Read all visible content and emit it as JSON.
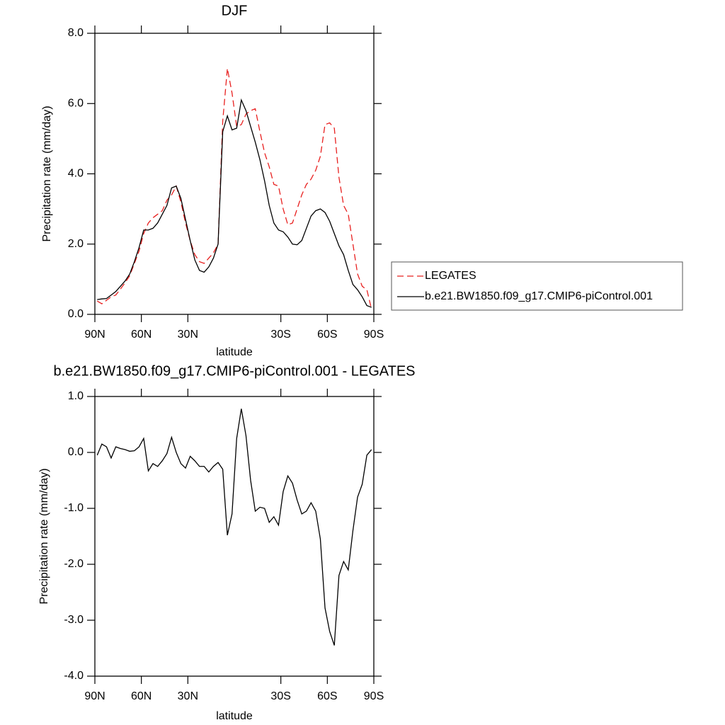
{
  "chart_data": [
    {
      "type": "line",
      "title": "DJF",
      "x_label": "latitude",
      "y_label": "Precipitation rate (mm/day)",
      "x": [
        88.5,
        85.5,
        82.5,
        79.5,
        76.5,
        73.5,
        70.5,
        67.5,
        64.5,
        61.5,
        58.5,
        55.5,
        52.5,
        49.5,
        46.5,
        43.5,
        40.5,
        37.5,
        34.5,
        31.5,
        28.5,
        25.5,
        22.5,
        19.5,
        16.5,
        13.5,
        10.5,
        7.5,
        4.5,
        1.5,
        -1.5,
        -4.5,
        -7.5,
        -10.5,
        -13.5,
        -16.5,
        -19.5,
        -22.5,
        -25.5,
        -28.5,
        -31.5,
        -34.5,
        -37.5,
        -40.5,
        -43.5,
        -46.5,
        -49.5,
        -52.5,
        -55.5,
        -58.5,
        -61.5,
        -64.5,
        -67.5,
        -70.5,
        -73.5,
        -76.5,
        -79.5,
        -82.5,
        -85.5,
        -88.5
      ],
      "series": [
        {
          "name": "LEGATES",
          "color": "#e8201f",
          "dash": true,
          "values": [
            0.38,
            0.3,
            0.4,
            0.5,
            0.55,
            0.72,
            0.9,
            1.1,
            1.45,
            1.8,
            2.3,
            2.6,
            2.75,
            2.85,
            2.95,
            3.25,
            3.4,
            3.65,
            3.2,
            2.6,
            2.1,
            1.7,
            1.5,
            1.45,
            1.6,
            1.75,
            2.0,
            5.5,
            7.0,
            6.3,
            5.35,
            5.4,
            5.7,
            5.8,
            5.85,
            5.2,
            4.6,
            4.2,
            3.7,
            3.65,
            3.0,
            2.55,
            2.6,
            3.0,
            3.4,
            3.7,
            3.85,
            4.1,
            4.5,
            5.4,
            5.45,
            5.3,
            3.9,
            3.1,
            2.85,
            2.0,
            1.15,
            0.8,
            0.7,
            0.15
          ]
        },
        {
          "name": "b.e21.BW1850.f09_g17.CMIP6-piControl.001",
          "color": "#000000",
          "dash": false,
          "values": [
            0.42,
            0.44,
            0.45,
            0.55,
            0.65,
            0.8,
            0.95,
            1.15,
            1.5,
            1.9,
            2.4,
            2.4,
            2.45,
            2.6,
            2.85,
            3.1,
            3.6,
            3.65,
            3.3,
            2.7,
            2.1,
            1.55,
            1.25,
            1.2,
            1.35,
            1.6,
            2.0,
            5.2,
            5.65,
            5.25,
            5.3,
            6.1,
            5.8,
            5.35,
            4.9,
            4.4,
            3.8,
            3.1,
            2.6,
            2.4,
            2.35,
            2.2,
            2.0,
            1.98,
            2.1,
            2.45,
            2.8,
            2.95,
            3.0,
            2.9,
            2.65,
            2.3,
            1.95,
            1.7,
            1.25,
            0.85,
            0.7,
            0.5,
            0.25,
            0.2
          ]
        }
      ],
      "xlim": [
        90,
        -90
      ],
      "xticks": [
        {
          "value": 90,
          "label": "90N"
        },
        {
          "value": 60,
          "label": "60N"
        },
        {
          "value": 30,
          "label": "30N"
        },
        {
          "value": -30,
          "label": "30S"
        },
        {
          "value": -60,
          "label": "60S"
        },
        {
          "value": -90,
          "label": "90S"
        }
      ],
      "ylim": [
        0,
        8
      ],
      "yticks": [
        {
          "value": 0,
          "label": "0.0"
        },
        {
          "value": 2,
          "label": "2.0"
        },
        {
          "value": 4,
          "label": "4.0"
        },
        {
          "value": 6,
          "label": "6.0"
        },
        {
          "value": 8,
          "label": "8.0"
        }
      ],
      "legend": "right"
    },
    {
      "type": "line",
      "title": "b.e21.BW1850.f09_g17.CMIP6-piControl.001 - LEGATES",
      "x_label": "latitude",
      "y_label": "Precipitation rate (mm/day)",
      "x": [
        88.5,
        85.5,
        82.5,
        79.5,
        76.5,
        73.5,
        70.5,
        67.5,
        64.5,
        61.5,
        58.5,
        55.5,
        52.5,
        49.5,
        46.5,
        43.5,
        40.5,
        37.5,
        34.5,
        31.5,
        28.5,
        25.5,
        22.5,
        19.5,
        16.5,
        13.5,
        10.5,
        7.5,
        4.5,
        1.5,
        -1.5,
        -4.5,
        -7.5,
        -10.5,
        -13.5,
        -16.5,
        -19.5,
        -22.5,
        -25.5,
        -28.5,
        -31.5,
        -34.5,
        -37.5,
        -40.5,
        -43.5,
        -46.5,
        -49.5,
        -52.5,
        -55.5,
        -58.5,
        -61.5,
        -64.5,
        -67.5,
        -70.5,
        -73.5,
        -76.5,
        -79.5,
        -82.5,
        -85.5,
        -88.5
      ],
      "series": [
        {
          "color": "#000000",
          "dash": false,
          "values": [
            -0.05,
            0.15,
            0.1,
            -0.1,
            0.1,
            0.07,
            0.05,
            0.02,
            0.03,
            0.1,
            0.25,
            -0.33,
            -0.2,
            -0.25,
            -0.15,
            -0.02,
            0.27,
            0.0,
            -0.2,
            -0.28,
            -0.07,
            -0.15,
            -0.25,
            -0.25,
            -0.35,
            -0.25,
            -0.18,
            -0.3,
            -1.48,
            -1.1,
            0.25,
            0.78,
            0.3,
            -0.5,
            -1.05,
            -0.98,
            -1.0,
            -1.25,
            -1.15,
            -1.3,
            -0.7,
            -0.42,
            -0.55,
            -0.85,
            -1.1,
            -1.05,
            -0.9,
            -1.05,
            -1.55,
            -2.78,
            -3.2,
            -3.45,
            -2.2,
            -1.95,
            -2.1,
            -1.4,
            -0.8,
            -0.57,
            -0.05,
            0.05
          ]
        }
      ],
      "xlim": [
        90,
        -90
      ],
      "xticks": [
        {
          "value": 90,
          "label": "90N"
        },
        {
          "value": 60,
          "label": "60N"
        },
        {
          "value": 30,
          "label": "30N"
        },
        {
          "value": -30,
          "label": "30S"
        },
        {
          "value": -60,
          "label": "60S"
        },
        {
          "value": -90,
          "label": "90S"
        }
      ],
      "ylim": [
        -4,
        1
      ],
      "yticks": [
        {
          "value": -4,
          "label": "-4.0"
        },
        {
          "value": -3,
          "label": "-3.0"
        },
        {
          "value": -2,
          "label": "-2.0"
        },
        {
          "value": -1,
          "label": "-1.0"
        },
        {
          "value": 0,
          "label": "0.0"
        },
        {
          "value": 1,
          "label": "1.0"
        }
      ]
    }
  ]
}
